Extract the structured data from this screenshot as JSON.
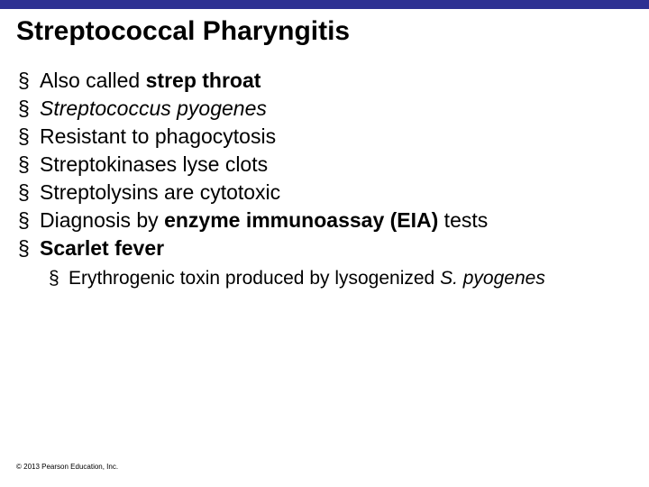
{
  "slide": {
    "topbar_color": "#2e3192",
    "title": "Streptococcal Pharyngitis",
    "title_fontsize": 30,
    "title_color": "#000000",
    "bullet_char": "§",
    "bullet_color": "#000000",
    "main_fontsize": 23,
    "sub_fontsize": 21,
    "text_color": "#000000",
    "items": [
      {
        "pre": "Also called ",
        "bold": "strep throat",
        "post": "",
        "italic": false
      },
      {
        "pre": "",
        "bold": "",
        "post": "Streptococcus pyogenes",
        "italic": true
      },
      {
        "pre": "Resistant to phagocytosis",
        "bold": "",
        "post": "",
        "italic": false
      },
      {
        "pre": "Streptokinases lyse clots",
        "bold": "",
        "post": "",
        "italic": false
      },
      {
        "pre": "Streptolysins are cytotoxic",
        "bold": "",
        "post": "",
        "italic": false
      },
      {
        "pre": "Diagnosis by ",
        "bold": "enzyme immunoassay (EIA)",
        "post": " tests",
        "italic": false
      },
      {
        "pre": "",
        "bold": "Scarlet fever",
        "post": "",
        "italic": false
      }
    ],
    "sub_items": [
      {
        "pre": "Erythrogenic toxin produced by lysogenized ",
        "italic_part": "S. pyogenes"
      }
    ],
    "copyright": "© 2013 Pearson Education, Inc.",
    "copyright_fontsize": 8,
    "copyright_color": "#000000"
  }
}
